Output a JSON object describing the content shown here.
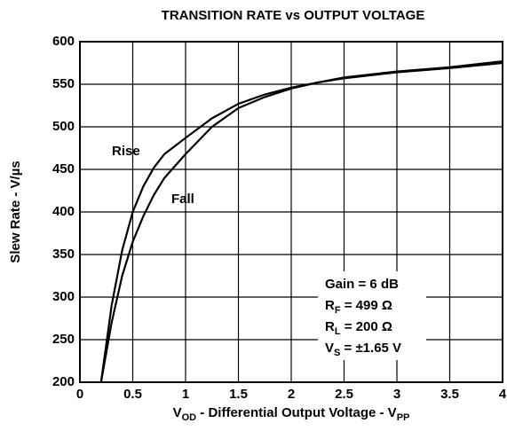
{
  "chart_data": {
    "type": "line",
    "title": "TRANSITION RATE vs OUTPUT VOLTAGE",
    "xlabel": [
      "V",
      "OD",
      " - Differential Output Voltage - V",
      "PP"
    ],
    "ylabel": "Slew Rate - V/µs",
    "x": [
      0.2,
      0.3,
      0.4,
      0.5,
      0.6,
      0.7,
      0.8,
      1,
      1.25,
      1.5,
      1.75,
      2,
      2.25,
      2.5,
      3,
      3.5,
      4
    ],
    "series": [
      {
        "name": "Rise",
        "color": "#000000",
        "values": [
          200,
          290,
          355,
          400,
          430,
          452,
          468,
          487,
          510,
          527,
          538,
          546,
          552,
          557,
          564,
          569,
          575
        ]
      },
      {
        "name": "Fall",
        "color": "#000000",
        "values": [
          200,
          270,
          325,
          365,
          395,
          420,
          440,
          468,
          500,
          522,
          535,
          545,
          552,
          558,
          565,
          570,
          577
        ]
      }
    ],
    "xlim": [
      0,
      4
    ],
    "xticks": [
      0,
      0.5,
      1,
      1.5,
      2,
      2.5,
      3,
      3.5,
      4
    ],
    "ylim": [
      200,
      600
    ],
    "yticks": [
      200,
      250,
      300,
      350,
      400,
      450,
      500,
      550,
      600
    ],
    "grid": true,
    "annotation": [
      [
        "Gain = 6 dB"
      ],
      [
        "R",
        "F",
        " = 499 Ω"
      ],
      [
        "R",
        "L",
        " = 200 Ω"
      ],
      [
        "V",
        "S",
        " = ±1.65 V"
      ]
    ]
  }
}
